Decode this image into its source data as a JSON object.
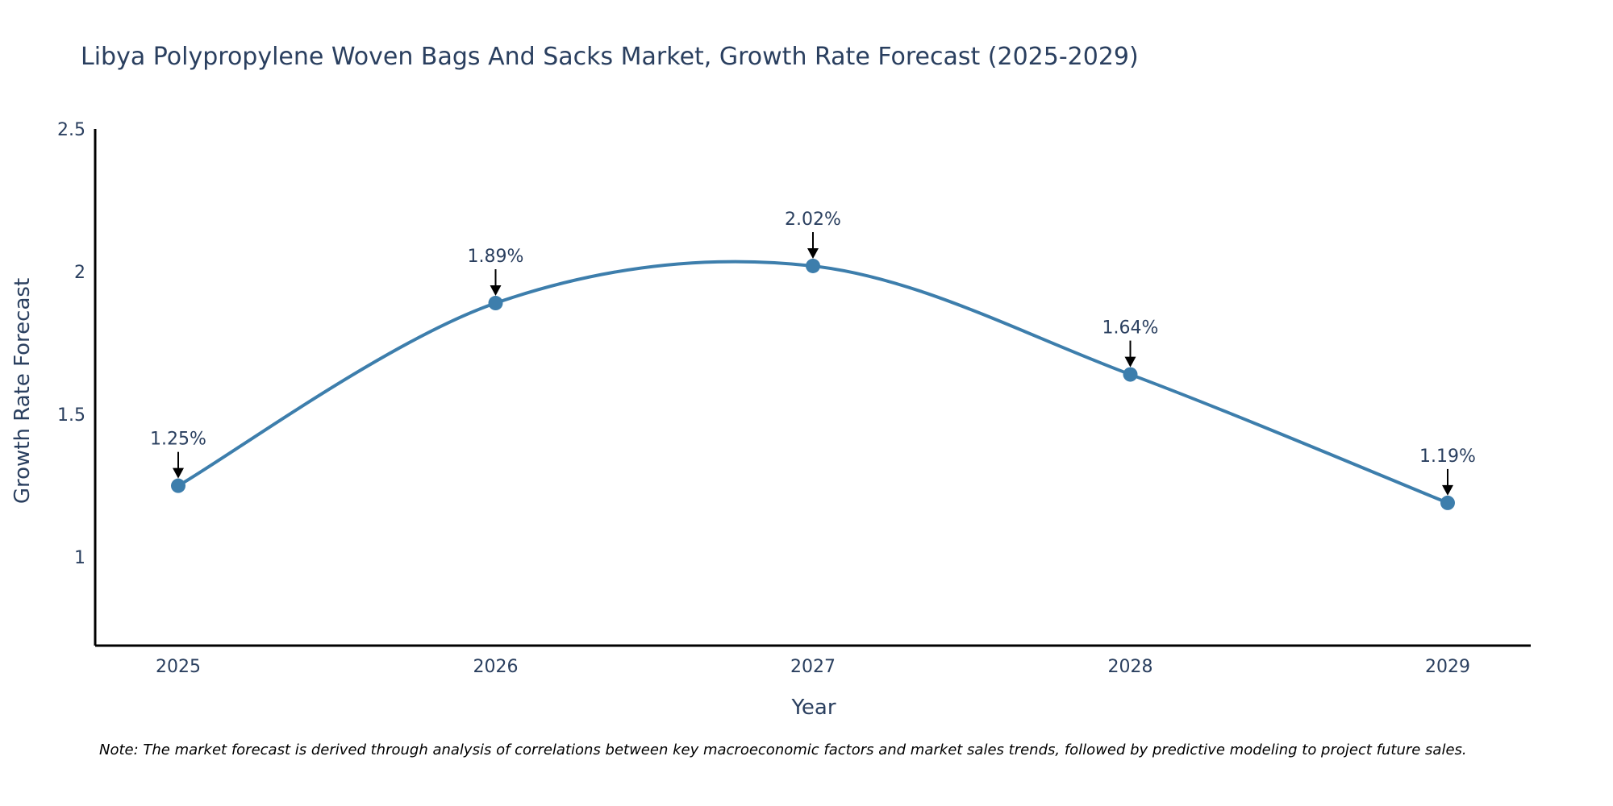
{
  "chart_data": {
    "type": "line",
    "title": "Libya Polypropylene Woven Bags And Sacks Market, Growth Rate Forecast (2025-2029)",
    "xlabel": "Year",
    "ylabel": "Growth Rate Forecast",
    "categories": [
      "2025",
      "2026",
      "2027",
      "2028",
      "2029"
    ],
    "values": [
      1.25,
      1.89,
      2.02,
      1.64,
      1.19
    ],
    "data_labels": [
      "1.25%",
      "1.89%",
      "2.02%",
      "1.64%",
      "1.19%"
    ],
    "ylim": [
      0.69,
      2.5
    ],
    "y_ticks": [
      1,
      1.5,
      2,
      2.5
    ],
    "y_tick_labels": [
      "1",
      "1.5",
      "2",
      "2.5"
    ],
    "grid": false,
    "line_shape": "spline",
    "colors": {
      "series": "#3d7eac",
      "marker": "#3d7eac",
      "axis": "#000000",
      "text": "#2a3f5f"
    }
  },
  "note": "Note: The market forecast is derived through analysis of correlations between key macroeconomic factors and market sales trends, followed by predictive modeling to project future sales."
}
